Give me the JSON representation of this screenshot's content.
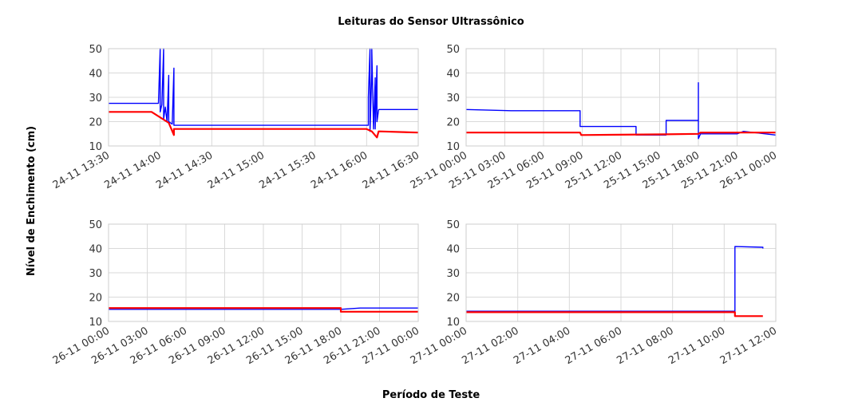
{
  "figure": {
    "title": "Leituras do Sensor Ultrassônico",
    "xlabel": "Período de Teste",
    "ylabel": "Nível de Enchimento (cm)"
  },
  "colors": {
    "series_1": "#0000ff",
    "series_2": "#ff0000",
    "grid": "#d9d9d9",
    "axis": "#cccccc",
    "text": "#333333"
  },
  "chart_data": [
    {
      "type": "line",
      "panel": "top-left",
      "ylim": [
        10,
        50
      ],
      "yticks": [
        "10",
        "20",
        "30",
        "40",
        "50"
      ],
      "xlim": [
        "24-11 13:30",
        "24-11 16:30"
      ],
      "xticks": [
        "24-11 13:30",
        "24-11 14:00",
        "24-11 14:30",
        "24-11 15:00",
        "24-11 15:30",
        "24-11 16:00",
        "24-11 16:30"
      ],
      "series": [
        {
          "color": "#0000ff",
          "points": [
            [
              "24-11 13:30",
              27.5
            ],
            [
              "24-11 13:59",
              27.5
            ],
            [
              "24-11 14:00",
              50
            ],
            [
              "24-11 14:00",
              24
            ],
            [
              "24-11 14:01",
              27
            ],
            [
              "24-11 14:02",
              50
            ],
            [
              "24-11 14:02",
              21
            ],
            [
              "24-11 14:03",
              26
            ],
            [
              "24-11 14:04",
              20
            ],
            [
              "24-11 14:05",
              39
            ],
            [
              "24-11 14:05",
              20
            ],
            [
              "24-11 14:07",
              19
            ],
            [
              "24-11 14:08",
              42
            ],
            [
              "24-11 14:08",
              18.5
            ],
            [
              "24-11 16:01",
              18.5
            ],
            [
              "24-11 16:01",
              30
            ],
            [
              "24-11 16:02",
              50
            ],
            [
              "24-11 16:02",
              16
            ],
            [
              "24-11 16:03",
              40
            ],
            [
              "24-11 16:03",
              50
            ],
            [
              "24-11 16:04",
              17
            ],
            [
              "24-11 16:05",
              38
            ],
            [
              "24-11 16:05",
              17
            ],
            [
              "24-11 16:06",
              43
            ],
            [
              "24-11 16:06",
              20
            ],
            [
              "24-11 16:07",
              25
            ],
            [
              "24-11 16:30",
              25
            ]
          ]
        },
        {
          "color": "#ff0000",
          "points": [
            [
              "24-11 13:30",
              24
            ],
            [
              "24-11 13:55",
              24
            ],
            [
              "24-11 14:05",
              19.5
            ],
            [
              "24-11 14:08",
              14.5
            ],
            [
              "24-11 14:08",
              17
            ],
            [
              "24-11 16:00",
              17
            ],
            [
              "24-11 16:03",
              16
            ],
            [
              "24-11 16:06",
              13.5
            ],
            [
              "24-11 16:07",
              16
            ],
            [
              "24-11 16:30",
              15.5
            ]
          ]
        }
      ]
    },
    {
      "type": "line",
      "panel": "top-right",
      "ylim": [
        10,
        50
      ],
      "yticks": [
        "10",
        "20",
        "30",
        "40",
        "50"
      ],
      "xlim": [
        "25-11 00:00",
        "26-11 00:00"
      ],
      "xticks": [
        "25-11 00:00",
        "25-11 03:00",
        "25-11 06:00",
        "25-11 09:00",
        "25-11 12:00",
        "25-11 15:00",
        "25-11 18:00",
        "25-11 21:00",
        "26-11 00:00"
      ],
      "series": [
        {
          "color": "#0000ff",
          "points": [
            [
              "25-11 00:00",
              25
            ],
            [
              "25-11 03:30",
              24.5
            ],
            [
              "25-11 08:50",
              24.5
            ],
            [
              "25-11 08:50",
              18
            ],
            [
              "25-11 13:10",
              18
            ],
            [
              "25-11 13:10",
              14.5
            ],
            [
              "25-11 15:30",
              14.5
            ],
            [
              "25-11 15:30",
              20.5
            ],
            [
              "25-11 18:00",
              20.5
            ],
            [
              "25-11 18:00",
              36
            ],
            [
              "25-11 18:00",
              13
            ],
            [
              "25-11 18:10",
              15
            ],
            [
              "25-11 21:00",
              15
            ],
            [
              "25-11 21:30",
              16
            ],
            [
              "26-11 00:00",
              14.5
            ]
          ]
        },
        {
          "color": "#ff0000",
          "points": [
            [
              "25-11 00:00",
              15.5
            ],
            [
              "25-11 08:50",
              15.5
            ],
            [
              "25-11 08:55",
              14.5
            ],
            [
              "25-11 15:30",
              14.8
            ],
            [
              "25-11 18:00",
              15
            ],
            [
              "25-11 18:10",
              15.5
            ],
            [
              "26-11 00:00",
              15.5
            ]
          ]
        }
      ]
    },
    {
      "type": "line",
      "panel": "bottom-left",
      "ylim": [
        10,
        50
      ],
      "yticks": [
        "10",
        "20",
        "30",
        "40",
        "50"
      ],
      "xlim": [
        "26-11 00:00",
        "27-11 00:00"
      ],
      "xticks": [
        "26-11 00:00",
        "26-11 03:00",
        "26-11 06:00",
        "26-11 09:00",
        "26-11 12:00",
        "26-11 15:00",
        "26-11 18:00",
        "26-11 21:00",
        "27-11 00:00"
      ],
      "series": [
        {
          "color": "#0000ff",
          "points": [
            [
              "26-11 00:00",
              15
            ],
            [
              "26-11 18:00",
              15
            ],
            [
              "26-11 19:30",
              15.5
            ],
            [
              "27-11 00:00",
              15.5
            ]
          ]
        },
        {
          "color": "#ff0000",
          "points": [
            [
              "26-11 00:00",
              15.5
            ],
            [
              "26-11 18:00",
              15.5
            ],
            [
              "26-11 18:00",
              14
            ],
            [
              "27-11 00:00",
              14
            ]
          ]
        }
      ]
    },
    {
      "type": "line",
      "panel": "bottom-right",
      "ylim": [
        10,
        50
      ],
      "yticks": [
        "10",
        "20",
        "30",
        "40",
        "50"
      ],
      "xlim": [
        "27-11 00:00",
        "27-11 12:00"
      ],
      "xticks": [
        "27-11 00:00",
        "27-11 02:00",
        "27-11 04:00",
        "27-11 06:00",
        "27-11 08:00",
        "27-11 10:00",
        "27-11 12:00"
      ],
      "series": [
        {
          "color": "#0000ff",
          "points": [
            [
              "27-11 00:00",
              14.2
            ],
            [
              "27-11 10:25",
              14.2
            ],
            [
              "27-11 10:25",
              40.8
            ],
            [
              "27-11 11:30",
              40.5
            ],
            [
              "27-11 11:30",
              40
            ]
          ]
        },
        {
          "color": "#ff0000",
          "points": [
            [
              "27-11 00:00",
              13.8
            ],
            [
              "27-11 10:25",
              13.8
            ],
            [
              "27-11 10:25",
              12.2
            ],
            [
              "27-11 11:30",
              12.2
            ]
          ]
        }
      ]
    }
  ]
}
